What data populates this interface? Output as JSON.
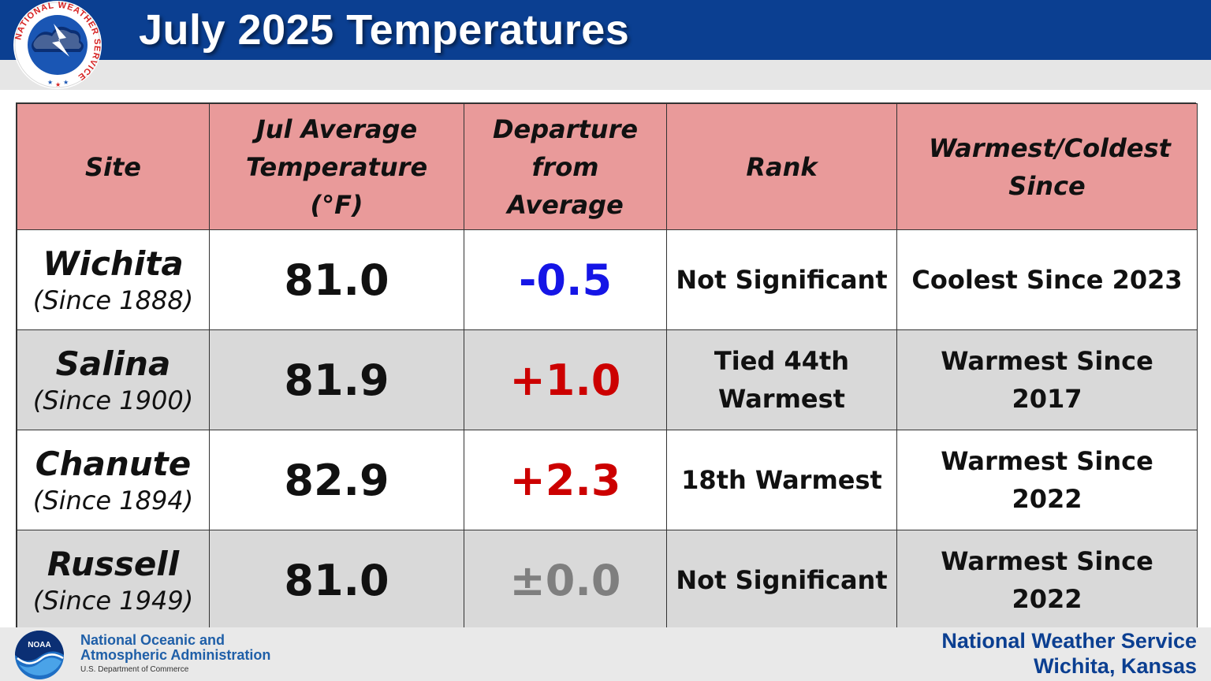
{
  "header": {
    "title": "July 2025 Temperatures",
    "logo_icon": "nws-logo-icon",
    "logo_text": "NATIONAL WEATHER SERVICE",
    "colors": {
      "bar": "#0b3f91",
      "strip": "#e6e6e6"
    }
  },
  "table": {
    "columns": [
      "Site",
      "Jul Average Temperature (°F)",
      "Departure from Average",
      "Rank",
      "Warmest/Coldest Since"
    ],
    "header_color": "#e99a9a",
    "rows": [
      {
        "site": "Wichita",
        "since": "(Since 1888)",
        "avg": "81.0",
        "departure": "-0.5",
        "departure_color": "#1515e6",
        "rank": "Not Significant",
        "record": "Coolest Since 2023"
      },
      {
        "site": "Salina",
        "since": "(Since 1900)",
        "avg": "81.9",
        "departure": "+1.0",
        "departure_color": "#cc0000",
        "rank": "Tied 44th Warmest",
        "record": "Warmest Since 2017"
      },
      {
        "site": "Chanute",
        "since": "(Since 1894)",
        "avg": "82.9",
        "departure": "+2.3",
        "departure_color": "#cc0000",
        "rank": "18th Warmest",
        "record": "Warmest Since 2022"
      },
      {
        "site": "Russell",
        "since": "(Since 1949)",
        "avg": "81.0",
        "departure": "±0.0",
        "departure_color": "#7f7f7f",
        "rank": "Not Significant",
        "record": "Warmest Since 2022"
      }
    ]
  },
  "footer": {
    "noaa_icon": "noaa-logo-icon",
    "noaa_logo_text": "NOAA",
    "noaa_line1": "National Oceanic and",
    "noaa_line2": "Atmospheric Administration",
    "noaa_line3": "U.S. Department of Commerce",
    "office_line1": "National Weather Service",
    "office_line2": "Wichita, Kansas"
  }
}
